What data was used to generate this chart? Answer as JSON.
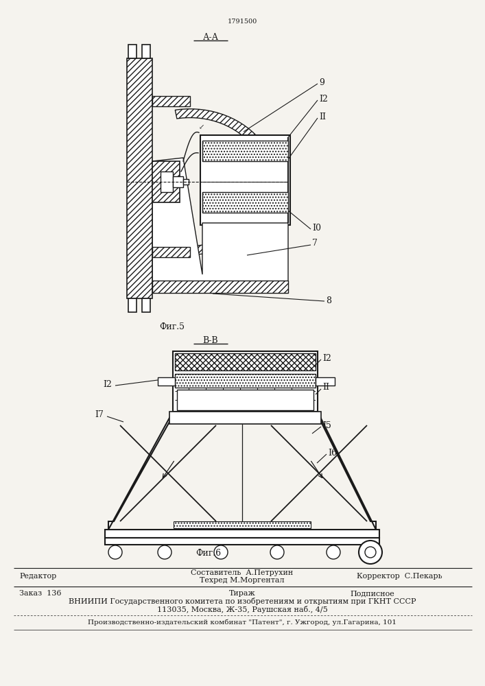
{
  "bg_color": "#f5f3ee",
  "line_color": "#1a1a1a",
  "patent_number": "1791500",
  "fig5_label": "А-А",
  "fig5_caption": "Фиг.5",
  "fig6_label": "В-В",
  "fig6_caption": "Фиг.6",
  "footer_line1_left": "Редактор",
  "footer_sestavitel": "Составитель  А.Петрухин",
  "footer_tehred": "Техред М.Моргентал",
  "footer_korrektor": "Корректор  С.Пекарь",
  "footer_zakaz": "Заказ  136",
  "footer_tirazh": "Тираж",
  "footer_podpisnoe": "Подписное",
  "footer_vniipи": "ВНИИПИ Государственного комитета по изобретениям и открытиям при ГКНТ СССР",
  "footer_addr": "113035, Москва, Ж-35, Раушская наб., 4/5",
  "footer_patent": "Производственно-издательский комбинат \"Патент\", г. Ужгород, ул.Гагарина, 101"
}
